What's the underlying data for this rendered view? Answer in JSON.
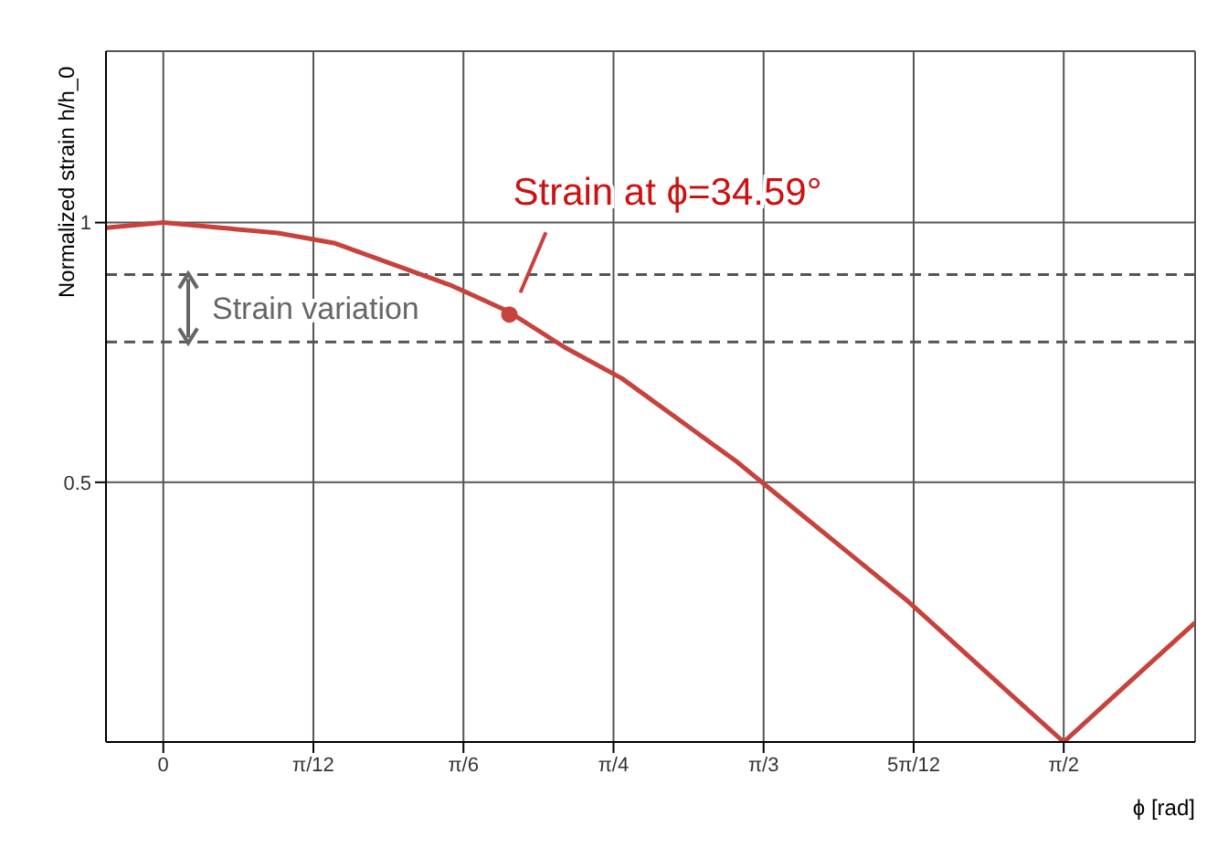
{
  "chart_data": {
    "type": "line",
    "xlabel": "ϕ [rad]",
    "ylabel": "Normalized strain h/h_0",
    "x": [
      -0.1,
      0,
      0.1,
      0.2,
      0.3,
      0.4,
      0.5,
      0.6,
      0.7,
      0.8,
      0.9,
      1.0,
      1.1,
      1.2,
      1.3,
      1.4,
      1.5,
      1.5708,
      1.7,
      1.8
    ],
    "series": [
      {
        "color": "#c8423d",
        "values": [
          0.99,
          1,
          0.99,
          0.98,
          0.96,
          0.92,
          0.88,
          0.83,
          0.76,
          0.7,
          0.62,
          0.54,
          0.45,
          0.36,
          0.27,
          0.17,
          0.07,
          0,
          0.13,
          0.23
        ]
      },
      {
        "type": "scatter",
        "color": "#c8423d",
        "x": [
          0.6037
        ],
        "values": [
          0.823
        ],
        "marker": "circle"
      }
    ],
    "xlim": [
      -0.1,
      1.8
    ],
    "ylim": [
      0,
      1.33
    ],
    "xticks": [
      0,
      {
        "value": 0.2618,
        "label": "π/12"
      },
      {
        "value": 0.5236,
        "label": "π/6"
      },
      {
        "value": 0.7854,
        "label": "π/4"
      },
      {
        "value": 1.0472,
        "label": "π/3"
      },
      {
        "value": 1.309,
        "label": "5π/12"
      },
      {
        "value": 1.5708,
        "label": "π/2"
      }
    ],
    "yticks": [
      0.5,
      1
    ],
    "grid": true,
    "marker": "none",
    "line_style": "solid",
    "ref_lines": [
      {
        "axis": "y",
        "value": 0.9,
        "color": "#555555",
        "line_style": "dashed"
      },
      {
        "axis": "y",
        "value": 0.77,
        "color": "#555555",
        "line_style": "dashed"
      }
    ],
    "annotations": [
      {
        "text": "Strain at ϕ=34.59°",
        "x": 0.6037,
        "y": 0.823
      },
      "Strain variation"
    ]
  }
}
